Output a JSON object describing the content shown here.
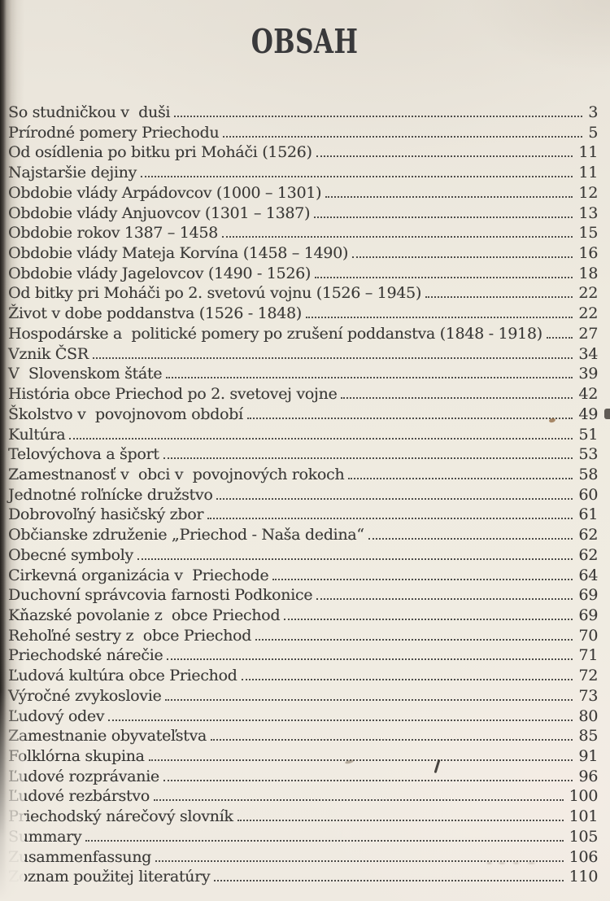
{
  "page_title": "OBSAH",
  "colors": {
    "paper": "#efeae1",
    "ink": "#3b3a38",
    "binding_shadow": "#120f0c"
  },
  "toc_entries": [
    {
      "label": "So studničkou v  duši",
      "page": "3"
    },
    {
      "label": "Prírodné pomery Priechodu",
      "page": "5"
    },
    {
      "label": "Od osídlenia po bitku pri Moháči (1526)",
      "page": "11"
    },
    {
      "label": "Najstaršie dejiny",
      "page": "11"
    },
    {
      "label": "Obdobie vlády Arpádovcov (1000 – 1301)",
      "page": "12"
    },
    {
      "label": "Obdobie vlády Anjuovcov (1301 – 1387)",
      "page": "13"
    },
    {
      "label": "Obdobie rokov 1387 – 1458",
      "page": "15"
    },
    {
      "label": "Obdobie vlády Mateja Korvína (1458 – 1490)",
      "page": "16"
    },
    {
      "label": "Obdobie vlády Jagelovcov (1490 - 1526)",
      "page": "18"
    },
    {
      "label": "Od bitky pri Moháči po 2. svetovú vojnu (1526 – 1945)",
      "page": "22"
    },
    {
      "label": "Život v dobe poddanstva (1526 - 1848)",
      "page": "22"
    },
    {
      "label": "Hospodárske a  politické pomery po zrušení poddanstva (1848 - 1918)",
      "page": "27"
    },
    {
      "label": "Vznik ČSR",
      "page": "34"
    },
    {
      "label": "V  Slovenskom štáte",
      "page": "39"
    },
    {
      "label": "História obce Priechod po 2. svetovej vojne",
      "page": "42"
    },
    {
      "label": "Školstvo v  povojnovom období",
      "page": "49"
    },
    {
      "label": "Kultúra",
      "page": "51"
    },
    {
      "label": "Telovýchova a šport",
      "page": "53"
    },
    {
      "label": "Zamestnanosť v  obci v  povojnových rokoch",
      "page": "58"
    },
    {
      "label": "Jednotné roľnícke družstvo",
      "page": "60"
    },
    {
      "label": "Dobrovoľný hasičský zbor",
      "page": "61"
    },
    {
      "label": "Občianske združenie „Priechod - Naša dedina“",
      "page": "62"
    },
    {
      "label": "Obecné symboly",
      "page": "62"
    },
    {
      "label": "Cirkevná organizácia v  Priechode",
      "page": "64"
    },
    {
      "label": "Duchovní správcovia farnosti Podkonice",
      "page": "69"
    },
    {
      "label": "Kňazské povolanie z  obce Priechod",
      "page": "69"
    },
    {
      "label": "Rehoľné sestry z  obce Priechod",
      "page": "70"
    },
    {
      "label": "Priechodské nárečie",
      "page": "71"
    },
    {
      "label": "Ľudová kultúra obce Priechod",
      "page": "72"
    },
    {
      "label": "Výročné zvykoslovie",
      "page": "73"
    },
    {
      "label": "Ľudový odev",
      "page": "80"
    },
    {
      "label": "Zamestnanie obyvateľstva",
      "page": "85"
    },
    {
      "label": "Folklórna skupina",
      "page": "91"
    },
    {
      "label": "Ľudové rozprávanie",
      "page": "96"
    },
    {
      "label": "Ľudové rezbárstvo",
      "page": "100"
    },
    {
      "label": "Priechodský nárečový slovník",
      "page": "101"
    },
    {
      "label": "Summary",
      "page": "105"
    },
    {
      "label": "Zusammenfassung",
      "page": "106"
    },
    {
      "label": "Zoznam použitej literatúry",
      "page": "110"
    }
  ]
}
